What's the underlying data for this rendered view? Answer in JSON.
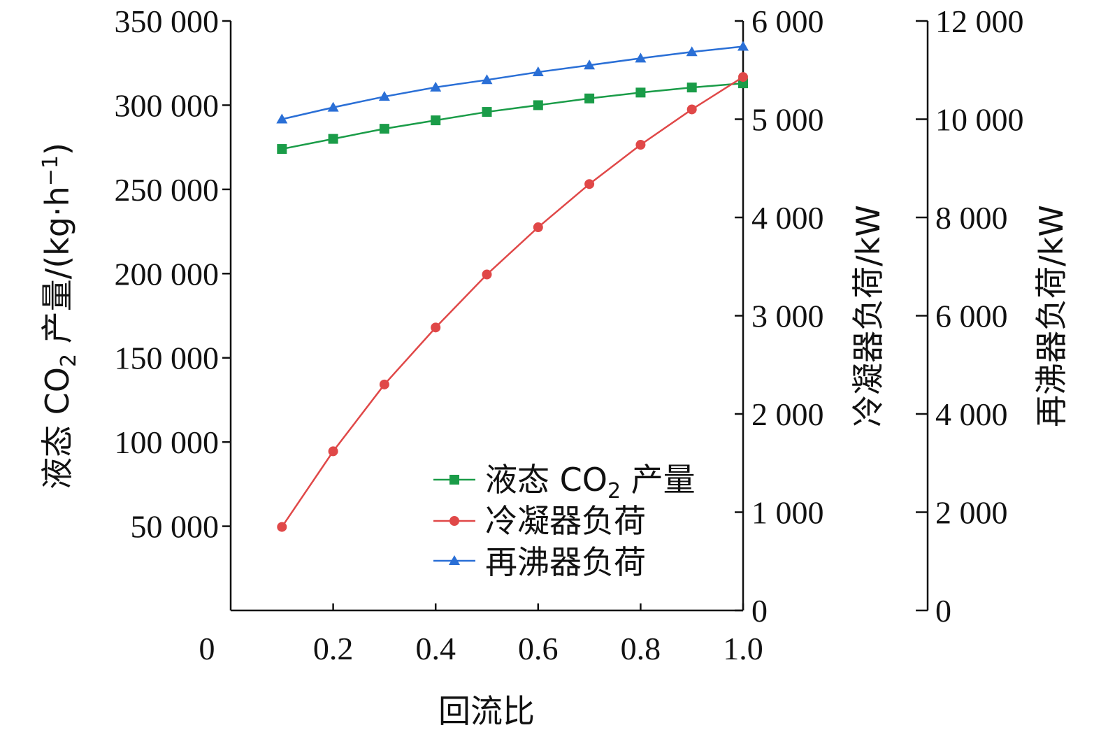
{
  "chart_data": {
    "type": "line",
    "xlabel": "回流比",
    "x": [
      0.1,
      0.2,
      0.3,
      0.4,
      0.5,
      0.6,
      0.7,
      0.8,
      0.9,
      1.0
    ],
    "x_ticks": [
      "0",
      "0.2",
      "0.4",
      "0.6",
      "0.8",
      "1.0"
    ],
    "xlim": [
      0,
      1.0
    ],
    "y_left": {
      "label_parts": [
        "液态 CO",
        "2",
        " 产量/(kg·h",
        "−1",
        ")"
      ],
      "ylim": [
        0,
        350000
      ],
      "ticks": [
        "350 000",
        "300 000",
        "250 000",
        "200 000",
        "150 000",
        "100 000",
        "50 000"
      ]
    },
    "y_right1": {
      "label": "冷凝器负荷/kW",
      "ylim": [
        0,
        6000
      ],
      "ticks": [
        "6 000",
        "5 000",
        "4 000",
        "3 000",
        "2 000",
        "1 000",
        "0"
      ]
    },
    "y_right2": {
      "label": "再沸器负荷/kW",
      "ylim": [
        0,
        12000
      ],
      "ticks": [
        "12 000",
        "10 000",
        "8 000",
        "6 000",
        "4 000",
        "2 000",
        "0"
      ]
    },
    "series": [
      {
        "name_parts": [
          "液态 CO",
          "2",
          " 产量"
        ],
        "axis": "left",
        "color": "#1a9c48",
        "marker": "square",
        "values": [
          274000,
          280000,
          286000,
          291000,
          296000,
          300000,
          304000,
          307500,
          310500,
          313000
        ]
      },
      {
        "name": "冷凝器负荷",
        "axis": "right1",
        "color": "#e04848",
        "marker": "circle",
        "values": [
          850,
          1620,
          2300,
          2880,
          3420,
          3900,
          4340,
          4740,
          5100,
          5430
        ]
      },
      {
        "name": "再沸器负荷",
        "axis": "right2",
        "color": "#2a6fd6",
        "marker": "triangle",
        "values": [
          10000,
          10240,
          10460,
          10650,
          10800,
          10960,
          11100,
          11240,
          11370,
          11480
        ]
      }
    ],
    "legend_position": "lower-right",
    "grid": false
  }
}
